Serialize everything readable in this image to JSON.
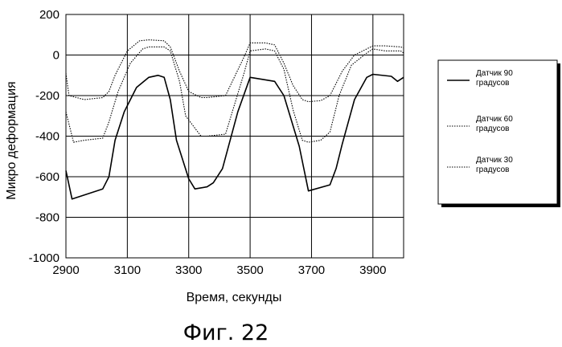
{
  "figure_label": "Фиг. 22",
  "chart_data": {
    "type": "line",
    "xlabel": "Время, секунды",
    "ylabel": "Микро деформация",
    "xlim": [
      2900,
      4000
    ],
    "ylim": [
      -1000,
      200
    ],
    "x_ticks": [
      2900,
      3100,
      3300,
      3500,
      3700,
      3900
    ],
    "y_ticks": [
      200,
      0,
      -200,
      -400,
      -600,
      -800,
      -1000
    ],
    "grid": true,
    "legend_position": "right",
    "series": [
      {
        "name": "Датчик 90 градусов",
        "legend_lines": [
          "Датчик 90",
          "градусов"
        ],
        "style": "solid",
        "x": [
          2900,
          2920,
          2960,
          3020,
          3040,
          3060,
          3090,
          3130,
          3170,
          3200,
          3220,
          3240,
          3260,
          3300,
          3320,
          3360,
          3380,
          3410,
          3460,
          3500,
          3540,
          3580,
          3610,
          3660,
          3690,
          3760,
          3780,
          3800,
          3840,
          3880,
          3900,
          3960,
          3980,
          4000
        ],
        "y": [
          -570,
          -710,
          -690,
          -660,
          -600,
          -420,
          -280,
          -160,
          -110,
          -100,
          -110,
          -220,
          -420,
          -610,
          -660,
          -650,
          -630,
          -560,
          -280,
          -110,
          -120,
          -130,
          -200,
          -450,
          -670,
          -640,
          -560,
          -440,
          -220,
          -110,
          -95,
          -105,
          -130,
          -110
        ]
      },
      {
        "name": "Датчик 60 градусов",
        "legend_lines": [
          "Датчик 60",
          "градусов"
        ],
        "style": "dotted",
        "x": [
          2900,
          2925,
          2960,
          3020,
          3040,
          3070,
          3110,
          3150,
          3170,
          3220,
          3240,
          3270,
          3290,
          3340,
          3360,
          3420,
          3480,
          3500,
          3550,
          3580,
          3610,
          3640,
          3670,
          3690,
          3730,
          3760,
          3790,
          3830,
          3880,
          3900,
          3940,
          3990,
          4000
        ],
        "y": [
          -280,
          -430,
          -420,
          -410,
          -330,
          -180,
          -40,
          30,
          40,
          40,
          20,
          -130,
          -300,
          -400,
          -400,
          -390,
          -90,
          20,
          30,
          20,
          -70,
          -270,
          -420,
          -430,
          -420,
          -380,
          -200,
          -50,
          10,
          30,
          20,
          20,
          10
        ]
      },
      {
        "name": "Датчик 30 градусов",
        "legend_lines": [
          "Датчик 30",
          "градусов"
        ],
        "style": "dotted",
        "x": [
          2900,
          2910,
          2960,
          3020,
          3040,
          3060,
          3100,
          3140,
          3170,
          3220,
          3240,
          3270,
          3300,
          3340,
          3360,
          3420,
          3480,
          3500,
          3550,
          3580,
          3610,
          3640,
          3670,
          3690,
          3730,
          3760,
          3800,
          3840,
          3880,
          3900,
          3940,
          3990,
          4000
        ],
        "y": [
          -90,
          -200,
          -220,
          -210,
          -180,
          -100,
          20,
          70,
          75,
          70,
          40,
          -80,
          -180,
          -210,
          -210,
          -200,
          -10,
          60,
          60,
          50,
          -40,
          -150,
          -220,
          -230,
          -225,
          -200,
          -80,
          0,
          30,
          45,
          45,
          40,
          35
        ]
      }
    ]
  }
}
